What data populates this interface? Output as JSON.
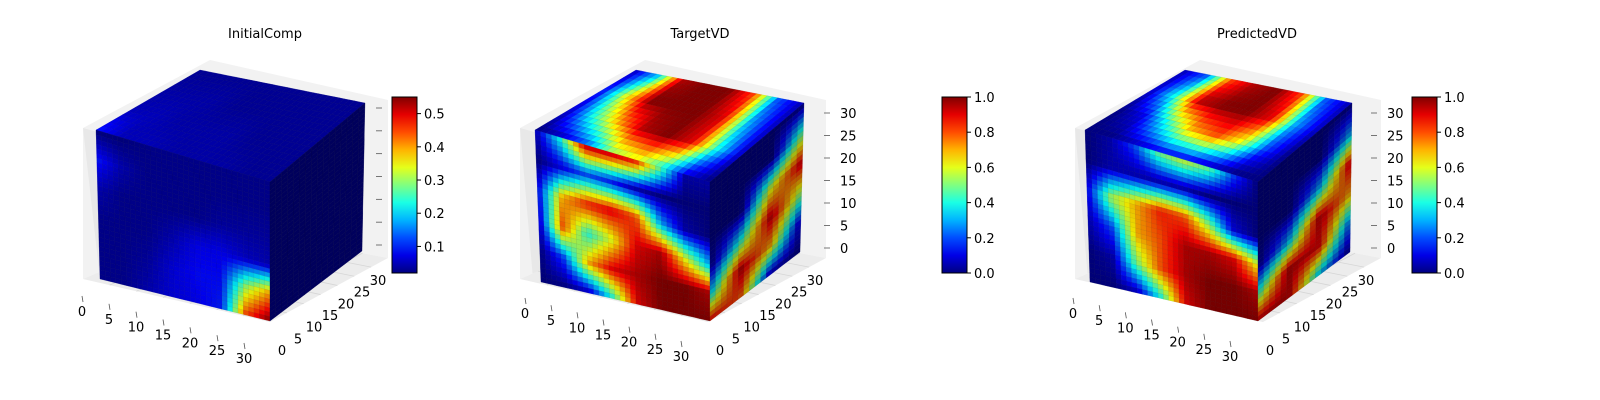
{
  "chart_data": [
    {
      "type": "voxel",
      "title": "InitialComp",
      "axes": {
        "x_ticks": [
          "0",
          "5",
          "10",
          "15",
          "20",
          "25",
          "30"
        ],
        "y_ticks": [
          "0",
          "5",
          "10",
          "15",
          "20",
          "25",
          "30"
        ],
        "z_ticks": []
      },
      "colorbar": {
        "ticks": [
          "0.1",
          "0.2",
          "0.3",
          "0.4",
          "0.5"
        ],
        "tick_values": [
          0.1,
          0.2,
          0.3,
          0.4,
          0.5
        ],
        "range": [
          0.02,
          0.55
        ]
      },
      "faces": {
        "front": [
          [
            0.02,
            0.02,
            0.03,
            0.03,
            0.03,
            0.03,
            0.03,
            0.03
          ],
          [
            0.1,
            0.05,
            0.03,
            0.03,
            0.03,
            0.03,
            0.03,
            0.03
          ],
          [
            0.05,
            0.03,
            0.03,
            0.03,
            0.03,
            0.04,
            0.04,
            0.04
          ],
          [
            0.03,
            0.03,
            0.03,
            0.05,
            0.08,
            0.08,
            0.06,
            0.05
          ],
          [
            0.03,
            0.03,
            0.04,
            0.07,
            0.09,
            0.09,
            0.3,
            0.4
          ],
          [
            0.03,
            0.03,
            0.05,
            0.07,
            0.08,
            0.1,
            0.45,
            0.55
          ]
        ],
        "top": [
          [
            0.03,
            0.03,
            0.03,
            0.03,
            0.03,
            0.03,
            0.03,
            0.03
          ],
          [
            0.04,
            0.04,
            0.04,
            0.03,
            0.03,
            0.03,
            0.03,
            0.03
          ],
          [
            0.05,
            0.05,
            0.04,
            0.04,
            0.04,
            0.03,
            0.03,
            0.03
          ],
          [
            0.1,
            0.05,
            0.05,
            0.04,
            0.04,
            0.04,
            0.03,
            0.03
          ]
        ],
        "side": [
          [
            0.02,
            0.02,
            0.02,
            0.02
          ],
          [
            0.02,
            0.02,
            0.02,
            0.02
          ],
          [
            0.02,
            0.02,
            0.02,
            0.02
          ],
          [
            0.02,
            0.02,
            0.02,
            0.02
          ],
          [
            0.02,
            0.02,
            0.02,
            0.02
          ],
          [
            0.02,
            0.02,
            0.02,
            0.02
          ]
        ]
      }
    },
    {
      "type": "voxel",
      "title": "TargetVD",
      "axes": {
        "x_ticks": [
          "0",
          "5",
          "10",
          "15",
          "20",
          "25",
          "30"
        ],
        "y_ticks": [
          "0",
          "5",
          "10",
          "15",
          "20",
          "25",
          "30"
        ],
        "z_ticks": [
          "0",
          "5",
          "10",
          "15",
          "20",
          "25",
          "30"
        ]
      },
      "colorbar": {
        "ticks": [
          "0.0",
          "0.2",
          "0.4",
          "0.6",
          "0.8",
          "1.0"
        ],
        "tick_values": [
          0,
          0.2,
          0.4,
          0.6,
          0.8,
          1.0
        ],
        "range": [
          0,
          1
        ]
      },
      "faces": {
        "front": [
          [
            0.05,
            0.4,
            0.95,
            0.95,
            0.9,
            0.5,
            0.05,
            0.05
          ],
          [
            0.0,
            0.1,
            0.2,
            0.15,
            0.05,
            0.0,
            0.0,
            0.0
          ],
          [
            0.1,
            0.7,
            0.85,
            0.9,
            0.8,
            0.3,
            0.05,
            0.0
          ],
          [
            0.05,
            0.8,
            0.4,
            0.6,
            0.9,
            0.95,
            0.6,
            0.3
          ],
          [
            0.0,
            0.2,
            0.7,
            0.9,
            0.95,
            1.0,
            1.0,
            0.95
          ],
          [
            0.0,
            0.0,
            0.05,
            0.4,
            0.9,
            1.0,
            1.0,
            1.0
          ]
        ],
        "top": [
          [
            0.05,
            0.3,
            0.95,
            1.0,
            1.0,
            0.8,
            0.2,
            0.05
          ],
          [
            0.1,
            0.6,
            1.0,
            1.0,
            1.0,
            0.9,
            0.3,
            0.05
          ],
          [
            0.05,
            0.4,
            0.7,
            0.95,
            1.0,
            0.9,
            0.4,
            0.05
          ],
          [
            0.0,
            0.05,
            0.2,
            0.5,
            0.6,
            0.4,
            0.1,
            0.0
          ]
        ],
        "side": [
          [
            0.0,
            0.0,
            0.0,
            0.0
          ],
          [
            0.0,
            0.0,
            0.0,
            0.5
          ],
          [
            0.0,
            0.0,
            0.6,
            0.95
          ],
          [
            0.0,
            0.4,
            0.95,
            0.5
          ],
          [
            0.3,
            0.95,
            0.7,
            0.05
          ],
          [
            0.9,
            0.8,
            0.05,
            0.0
          ]
        ]
      }
    },
    {
      "type": "voxel",
      "title": "PredictedVD",
      "axes": {
        "x_ticks": [
          "0",
          "5",
          "10",
          "15",
          "20",
          "25",
          "30"
        ],
        "y_ticks": [
          "0",
          "5",
          "10",
          "15",
          "20",
          "25",
          "30"
        ],
        "z_ticks": [
          "0",
          "5",
          "10",
          "15",
          "20",
          "25",
          "30"
        ]
      },
      "colorbar": {
        "ticks": [
          "0.0",
          "0.2",
          "0.4",
          "0.6",
          "0.8",
          "1.0"
        ],
        "tick_values": [
          0,
          0.2,
          0.4,
          0.6,
          0.8,
          1.0
        ],
        "range": [
          0,
          1
        ]
      },
      "faces": {
        "front": [
          [
            0.0,
            0.05,
            0.2,
            0.5,
            0.6,
            0.5,
            0.2,
            0.0
          ],
          [
            0.0,
            0.05,
            0.05,
            0.05,
            0.05,
            0.0,
            0.0,
            0.0
          ],
          [
            0.1,
            0.55,
            0.7,
            0.85,
            0.8,
            0.5,
            0.1,
            0.0
          ],
          [
            0.05,
            0.2,
            0.7,
            0.8,
            0.95,
            0.95,
            0.9,
            0.6
          ],
          [
            0.0,
            0.05,
            0.5,
            0.8,
            0.95,
            1.0,
            1.0,
            0.95
          ],
          [
            0.0,
            0.0,
            0.05,
            0.4,
            0.9,
            1.0,
            1.0,
            1.0
          ]
        ],
        "top": [
          [
            0.05,
            0.2,
            0.8,
            0.95,
            1.0,
            0.8,
            0.2,
            0.05
          ],
          [
            0.05,
            0.4,
            0.95,
            1.0,
            1.0,
            0.9,
            0.3,
            0.05
          ],
          [
            0.0,
            0.1,
            0.4,
            0.7,
            0.8,
            0.6,
            0.2,
            0.0
          ],
          [
            0.0,
            0.0,
            0.05,
            0.1,
            0.1,
            0.05,
            0.0,
            0.0
          ]
        ],
        "side": [
          [
            0.0,
            0.0,
            0.0,
            0.0
          ],
          [
            0.0,
            0.0,
            0.0,
            0.3
          ],
          [
            0.0,
            0.0,
            0.3,
            0.95
          ],
          [
            0.0,
            0.3,
            0.95,
            0.7
          ],
          [
            0.4,
            0.95,
            0.9,
            0.2
          ],
          [
            0.95,
            0.95,
            0.3,
            0.0
          ]
        ]
      }
    }
  ]
}
